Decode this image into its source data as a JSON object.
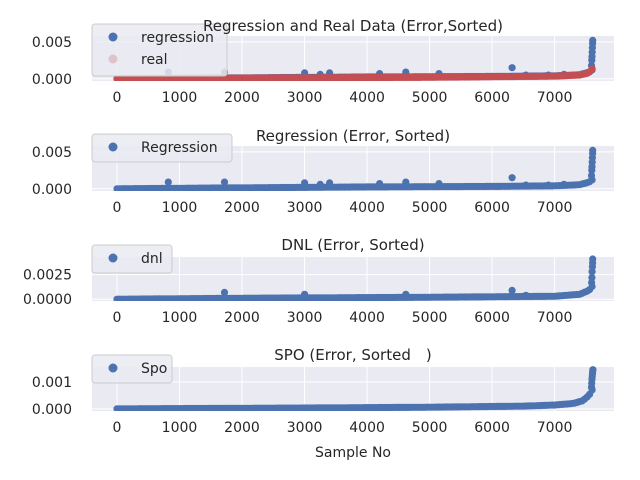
{
  "figure": {
    "xlabel": "Sample No",
    "xticks": [
      0,
      1000,
      2000,
      3000,
      4000,
      5000,
      6000,
      7000
    ],
    "xlim": [
      -400,
      7950
    ],
    "background": "#eaeaf2",
    "grid_color": "#ffffff"
  },
  "chart_data": [
    {
      "type": "scatter",
      "title": "Regression and Real Data (Error,Sorted)",
      "ylim": [
        -0.0003,
        0.0058
      ],
      "yticks": [
        0.0,
        0.005
      ],
      "ytick_labels": [
        "0.000",
        "0.005"
      ],
      "legend_position": "upper-left",
      "series": [
        {
          "name": "regression",
          "color": "#4c72b0",
          "n": 7600,
          "base": [
            [
              0,
              0.0
            ],
            [
              1500,
              0.0001
            ],
            [
              4000,
              0.00025
            ],
            [
              6000,
              0.00032
            ],
            [
              7000,
              0.0004
            ],
            [
              7400,
              0.00055
            ],
            [
              7550,
              0.0009
            ],
            [
              7600,
              0.0012
            ]
          ],
          "tail": [
            [
              7590,
              0.0018
            ],
            [
              7595,
              0.0025
            ],
            [
              7598,
              0.003
            ],
            [
              7602,
              0.0036
            ],
            [
              7605,
              0.0042
            ],
            [
              7608,
              0.0048
            ],
            [
              7610,
              0.0052
            ]
          ],
          "outliers": [
            [
              820,
              0.0009
            ],
            [
              1720,
              0.0009
            ],
            [
              3000,
              0.0008
            ],
            [
              3250,
              0.0006
            ],
            [
              3400,
              0.0008
            ],
            [
              4200,
              0.0007
            ],
            [
              4620,
              0.0009
            ],
            [
              5150,
              0.0007
            ],
            [
              6320,
              0.0015
            ],
            [
              6540,
              0.0005
            ],
            [
              6900,
              0.0005
            ],
            [
              7150,
              0.0006
            ]
          ]
        },
        {
          "name": "real",
          "color": "#c44e52",
          "n": 7600,
          "base": [
            [
              0,
              0.0
            ],
            [
              2000,
              0.0001
            ],
            [
              5000,
              0.0002
            ],
            [
              7000,
              0.00035
            ],
            [
              7400,
              0.0005
            ],
            [
              7550,
              0.0008
            ],
            [
              7600,
              0.0014
            ]
          ],
          "tail": [],
          "outliers": []
        }
      ]
    },
    {
      "type": "scatter",
      "title": "Regression (Error, Sorted)",
      "ylim": [
        -0.0003,
        0.0058
      ],
      "yticks": [
        0.0,
        0.005
      ],
      "ytick_labels": [
        "0.000",
        "0.005"
      ],
      "legend_position": "upper-left",
      "series": [
        {
          "name": "Regression",
          "color": "#4c72b0",
          "n": 7600,
          "base": [
            [
              0,
              0.0
            ],
            [
              1500,
              0.0001
            ],
            [
              4000,
              0.00025
            ],
            [
              6000,
              0.00032
            ],
            [
              7000,
              0.0004
            ],
            [
              7400,
              0.00055
            ],
            [
              7550,
              0.0009
            ],
            [
              7600,
              0.0012
            ]
          ],
          "tail": [
            [
              7590,
              0.0018
            ],
            [
              7595,
              0.0025
            ],
            [
              7598,
              0.003
            ],
            [
              7602,
              0.0036
            ],
            [
              7605,
              0.0042
            ],
            [
              7608,
              0.0048
            ],
            [
              7610,
              0.0052
            ]
          ],
          "outliers": [
            [
              820,
              0.0009
            ],
            [
              1720,
              0.0009
            ],
            [
              3000,
              0.0008
            ],
            [
              3250,
              0.0006
            ],
            [
              3400,
              0.0008
            ],
            [
              4200,
              0.0007
            ],
            [
              4620,
              0.0009
            ],
            [
              5150,
              0.0007
            ],
            [
              6320,
              0.0015
            ],
            [
              6540,
              0.0005
            ],
            [
              6900,
              0.0005
            ],
            [
              7150,
              0.0006
            ]
          ]
        }
      ]
    },
    {
      "type": "scatter",
      "title": "DNL (Error, Sorted)",
      "ylim": [
        -0.00018,
        0.0043
      ],
      "yticks": [
        0.0,
        0.0025
      ],
      "ytick_labels": [
        "0.0000",
        "0.0025"
      ],
      "legend_position": "upper-left",
      "series": [
        {
          "name": "dnl",
          "color": "#4c72b0",
          "n": 7600,
          "base": [
            [
              0,
              0.0
            ],
            [
              2000,
              0.0001
            ],
            [
              5000,
              0.0002
            ],
            [
              7000,
              0.0003
            ],
            [
              7400,
              0.0005
            ],
            [
              7550,
              0.0009
            ],
            [
              7600,
              0.0013
            ]
          ],
          "tail": [
            [
              7592,
              0.0017
            ],
            [
              7596,
              0.0022
            ],
            [
              7600,
              0.0028
            ],
            [
              7604,
              0.0033
            ],
            [
              7607,
              0.0037
            ],
            [
              7610,
              0.0041
            ]
          ],
          "outliers": [
            [
              1720,
              0.0007
            ],
            [
              3000,
              0.0005
            ],
            [
              4620,
              0.0005
            ],
            [
              6320,
              0.0009
            ],
            [
              6540,
              0.0004
            ]
          ]
        }
      ]
    },
    {
      "type": "scatter",
      "title": "SPO (Error, Sorted　)",
      "ylim": [
        -8e-05,
        0.00155
      ],
      "yticks": [
        0.0,
        0.001
      ],
      "ytick_labels": [
        "0.000",
        "0.001"
      ],
      "legend_position": "upper-left",
      "series": [
        {
          "name": "Spo",
          "color": "#4c72b0",
          "n": 7600,
          "base": [
            [
              0,
              0.0
            ],
            [
              1000,
              1e-05
            ],
            [
              3000,
              3e-05
            ],
            [
              5000,
              6e-05
            ],
            [
              6500,
              0.0001
            ],
            [
              7000,
              0.00014
            ],
            [
              7300,
              0.0002
            ],
            [
              7450,
              0.0003
            ],
            [
              7550,
              0.0005
            ],
            [
              7600,
              0.0007
            ]
          ],
          "tail": [
            [
              7590,
              0.0008
            ],
            [
              7594,
              0.00095
            ],
            [
              7598,
              0.0011
            ],
            [
              7602,
              0.0012
            ],
            [
              7606,
              0.0013
            ],
            [
              7610,
              0.0014
            ],
            [
              7612,
              0.00145
            ]
          ],
          "outliers": []
        }
      ]
    }
  ]
}
